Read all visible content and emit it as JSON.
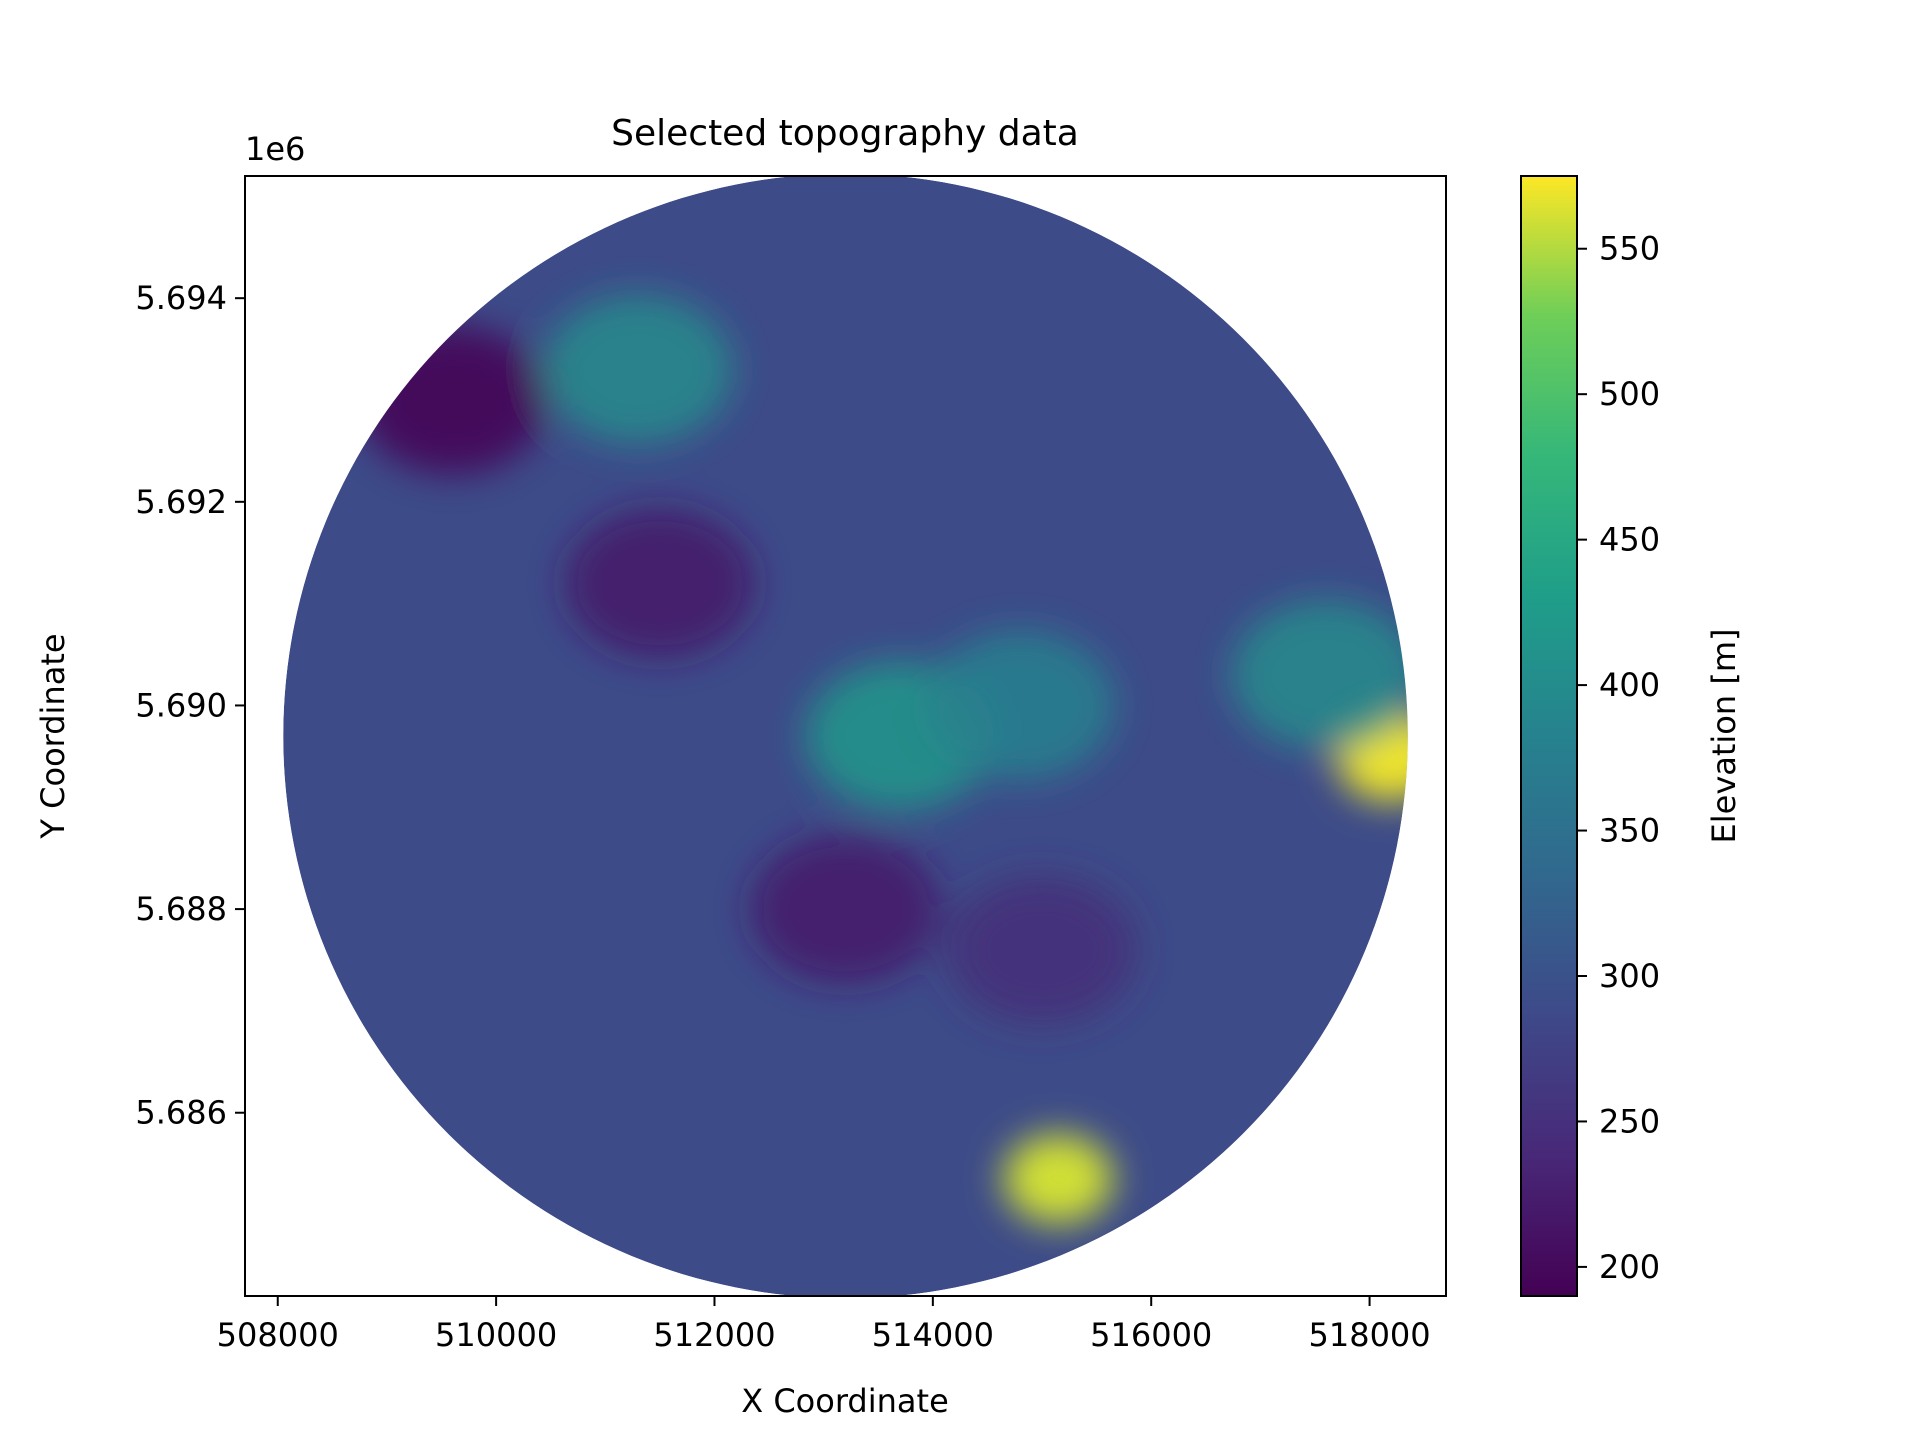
{
  "chart_data": {
    "type": "heatmap",
    "title": "Selected topography data",
    "xlabel": "X Coordinate",
    "ylabel": "Y Coordinate",
    "y_offset_text": "1e6",
    "xlim": [
      507700,
      518700
    ],
    "ylim": [
      5684200,
      5695200
    ],
    "x_ticks": [
      508000,
      510000,
      512000,
      514000,
      516000,
      518000
    ],
    "x_tick_labels": [
      "508000",
      "510000",
      "512000",
      "514000",
      "516000",
      "518000"
    ],
    "y_ticks": [
      5686000,
      5688000,
      5690000,
      5692000,
      5694000
    ],
    "y_tick_labels": [
      "5.686",
      "5.688",
      "5.690",
      "5.692",
      "5.694"
    ],
    "domain": {
      "shape": "circle",
      "center": [
        513200,
        5689700
      ],
      "radius": 5150
    },
    "elevation_features": [
      {
        "x": 518200,
        "y": 5689500,
        "elevation": 570
      },
      {
        "x": 515150,
        "y": 5685350,
        "elevation": 560
      },
      {
        "x": 513700,
        "y": 5689700,
        "elevation": 420
      },
      {
        "x": 511300,
        "y": 5693300,
        "elevation": 400
      },
      {
        "x": 514800,
        "y": 5690000,
        "elevation": 380
      },
      {
        "x": 517600,
        "y": 5690300,
        "elevation": 400
      },
      {
        "x": 509600,
        "y": 5693000,
        "elevation": 190
      },
      {
        "x": 511500,
        "y": 5691200,
        "elevation": 215
      },
      {
        "x": 513200,
        "y": 5688000,
        "elevation": 220
      },
      {
        "x": 515000,
        "y": 5687600,
        "elevation": 245
      }
    ],
    "colorbar": {
      "label": "Elevation [m]",
      "colormap": "viridis",
      "min": 190,
      "max": 575,
      "ticks": [
        200,
        250,
        300,
        350,
        400,
        450,
        500,
        550
      ],
      "tick_labels": [
        "200",
        "250",
        "300",
        "350",
        "400",
        "450",
        "500",
        "550"
      ]
    },
    "grid": false
  }
}
